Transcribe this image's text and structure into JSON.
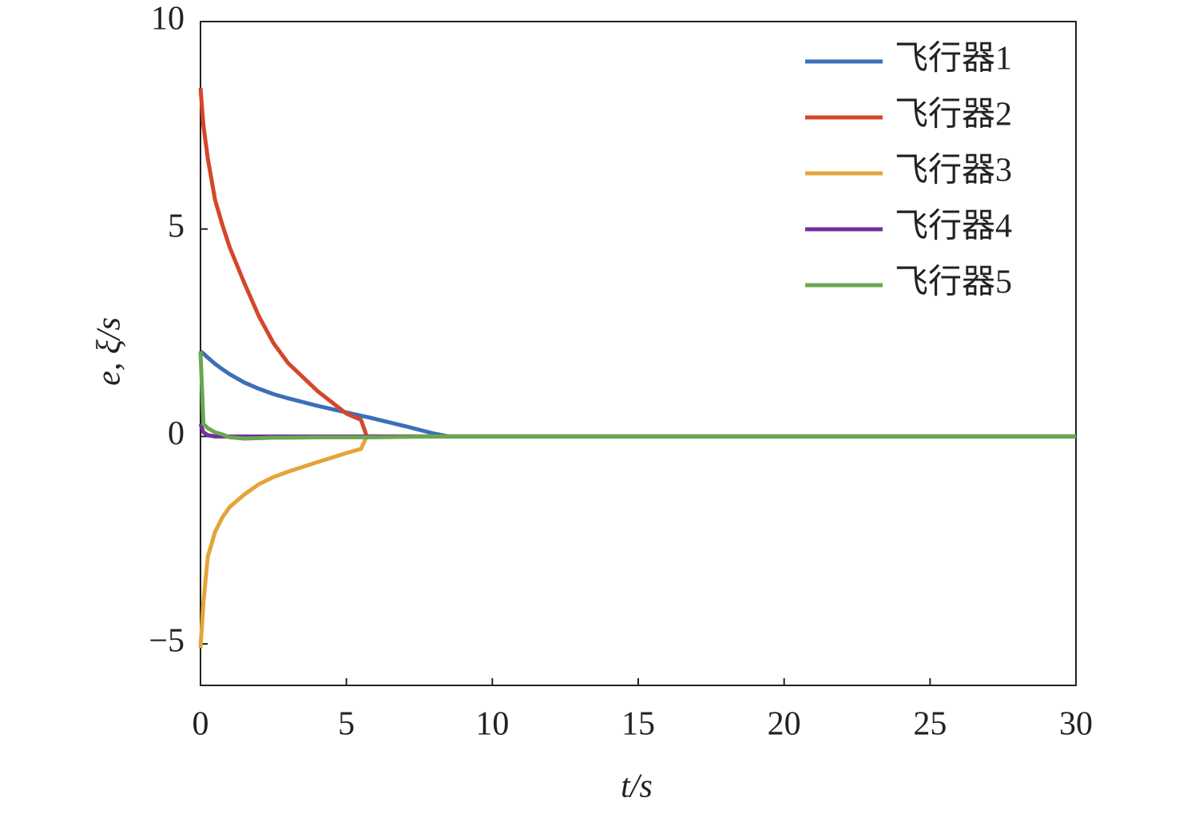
{
  "chart_data": {
    "type": "line",
    "xlabel": "t/s",
    "ylabel": "e, ξ/s",
    "x": [
      0,
      0.1,
      0.25,
      0.5,
      0.75,
      1,
      1.5,
      2,
      2.5,
      3,
      4,
      5,
      5.5,
      5.7,
      6,
      7,
      8,
      8.5,
      10,
      15,
      20,
      25,
      30
    ],
    "series": [
      {
        "name": "飞行器1",
        "color": "#3c6fb8",
        "values": [
          2.05,
          2.0,
          1.9,
          1.75,
          1.62,
          1.5,
          1.3,
          1.15,
          1.02,
          0.92,
          0.74,
          0.58,
          0.5,
          0.47,
          0.42,
          0.25,
          0.07,
          0,
          0,
          0,
          0,
          0,
          0
        ]
      },
      {
        "name": "飞行器2",
        "color": "#d4472a",
        "values": [
          8.4,
          7.5,
          6.7,
          5.7,
          5.1,
          4.56,
          3.7,
          2.9,
          2.25,
          1.77,
          1.1,
          0.55,
          0.4,
          0,
          0,
          0,
          0,
          0,
          0,
          0,
          0,
          0,
          0
        ]
      },
      {
        "name": "飞行器3",
        "color": "#e4a43a",
        "values": [
          -5.1,
          -4.0,
          -2.9,
          -2.3,
          -1.95,
          -1.7,
          -1.4,
          -1.15,
          -0.98,
          -0.85,
          -0.62,
          -0.4,
          -0.3,
          0,
          0,
          0,
          0,
          0,
          0,
          0,
          0,
          0,
          0
        ]
      },
      {
        "name": "飞行器4",
        "color": "#7030a0",
        "values": [
          0.3,
          0.1,
          0.03,
          0,
          0,
          0,
          0,
          0,
          0,
          0,
          0,
          0,
          0,
          0,
          0,
          0,
          0,
          0,
          0,
          0,
          0,
          0,
          0
        ]
      },
      {
        "name": "飞行器5",
        "color": "#6aa84f",
        "values": [
          2.05,
          0.3,
          0.2,
          0.1,
          0.05,
          -0.02,
          -0.05,
          -0.04,
          -0.03,
          -0.03,
          -0.02,
          -0.02,
          -0.02,
          -0.02,
          -0.02,
          -0.01,
          0,
          0,
          0,
          0,
          0,
          0,
          0
        ]
      }
    ],
    "xlim": [
      0,
      30
    ],
    "xticks": [
      0,
      5,
      10,
      15,
      20,
      25,
      30
    ],
    "ylim": [
      -6,
      10
    ],
    "yticks": [
      {
        "value": -5,
        "label": "−5"
      },
      0,
      5,
      10
    ],
    "legend": "upper right"
  }
}
